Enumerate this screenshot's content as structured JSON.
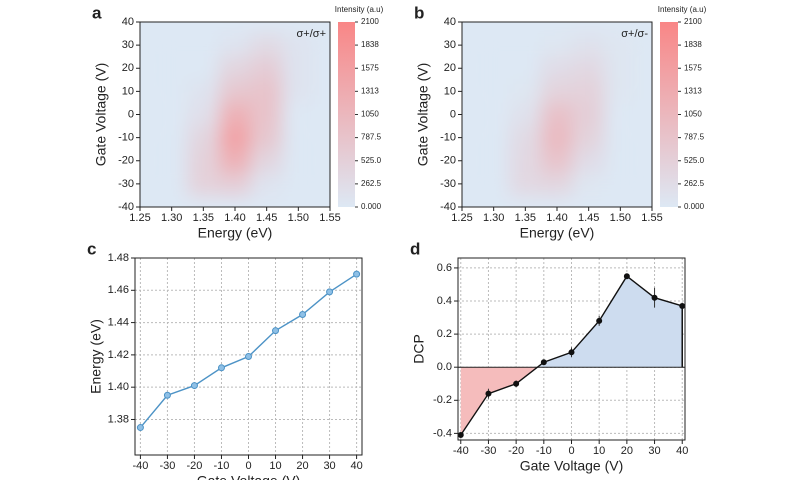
{
  "chart_data": [
    {
      "type": "heatmap",
      "panel": "a",
      "annotation": "σ+/σ+",
      "xlabel": "Energy (eV)",
      "ylabel": "Gate Voltage (V)",
      "colorbar_label": "Intensity (a.u)",
      "x": [
        1.3,
        1.35,
        1.4,
        1.45,
        1.5
      ],
      "y": [
        -30,
        -20,
        -10,
        0,
        10,
        20,
        30
      ],
      "z": [
        [
          0,
          500,
          600,
          100,
          0
        ],
        [
          0,
          500,
          1200,
          400,
          0
        ],
        [
          0,
          400,
          1500,
          700,
          0
        ],
        [
          0,
          200,
          1200,
          800,
          0
        ],
        [
          0,
          100,
          700,
          800,
          100
        ],
        [
          0,
          0,
          400,
          600,
          100
        ],
        [
          0,
          0,
          100,
          300,
          100
        ]
      ],
      "xlim": [
        1.25,
        1.55
      ],
      "ylim": [
        -40,
        40
      ],
      "zlim": [
        0,
        2100
      ],
      "xticks": [
        1.25,
        {
          "value": 1.3,
          "label": "1.30"
        },
        1.35,
        {
          "value": 1.4,
          "label": "1.40"
        },
        1.45,
        {
          "value": 1.5,
          "label": "1.50"
        },
        1.55
      ],
      "yticks": [
        -40,
        -30,
        -20,
        -10,
        0,
        10,
        20,
        30,
        40
      ],
      "zticks": [
        {
          "value": 0,
          "label": "0.000"
        },
        262.5,
        {
          "value": 525,
          "label": "525.0"
        },
        787.5,
        1050,
        1313,
        1575,
        1838,
        2100
      ],
      "colorscale": [
        "#dde8f4",
        "#f98686"
      ]
    },
    {
      "type": "heatmap",
      "panel": "b",
      "annotation": "σ+/σ-",
      "xlabel": "Energy (eV)",
      "ylabel": "Gate Voltage (V)",
      "colorbar_label": "Intensity (a.u)",
      "x": [
        1.3,
        1.35,
        1.4,
        1.45,
        1.5
      ],
      "y": [
        -30,
        -20,
        -10,
        0,
        10,
        20,
        30
      ],
      "z": [
        [
          0,
          350,
          400,
          50,
          0
        ],
        [
          0,
          350,
          800,
          250,
          0
        ],
        [
          0,
          300,
          1000,
          450,
          0
        ],
        [
          0,
          150,
          850,
          550,
          0
        ],
        [
          0,
          50,
          450,
          500,
          50
        ],
        [
          0,
          0,
          250,
          350,
          50
        ],
        [
          0,
          0,
          50,
          150,
          50
        ]
      ],
      "xlim": [
        1.25,
        1.55
      ],
      "ylim": [
        -40,
        40
      ],
      "zlim": [
        0,
        2100
      ],
      "xticks": [
        1.25,
        {
          "value": 1.3,
          "label": "1.30"
        },
        1.35,
        {
          "value": 1.4,
          "label": "1.40"
        },
        1.45,
        {
          "value": 1.5,
          "label": "1.50"
        },
        1.55
      ],
      "yticks": [
        -40,
        -30,
        -20,
        -10,
        0,
        10,
        20,
        30,
        40
      ],
      "zticks": [
        {
          "value": 0,
          "label": "0.000"
        },
        262.5,
        {
          "value": 525,
          "label": "525.0"
        },
        787.5,
        1050,
        1313,
        1575,
        1838,
        2100
      ],
      "colorscale": [
        "#dde8f4",
        "#f98686"
      ]
    },
    {
      "type": "line",
      "panel": "c",
      "xlabel": "Gate Voltage (V)",
      "ylabel": "Energy (eV)",
      "x": [
        -40,
        -30,
        -20,
        -10,
        0,
        10,
        20,
        30,
        40
      ],
      "values": [
        1.375,
        1.395,
        1.401,
        1.412,
        1.419,
        1.435,
        1.445,
        1.459,
        1.47
      ],
      "color": "#4d93c6",
      "grid": true,
      "xlim": [
        -42,
        42
      ],
      "ylim": [
        1.358,
        1.48
      ],
      "xticks": [
        -40,
        -30,
        -20,
        -10,
        0,
        10,
        20,
        30,
        40
      ],
      "yticks": [
        1.38,
        {
          "value": 1.4,
          "label": "1.40"
        },
        1.42,
        1.44,
        1.46,
        1.48
      ]
    },
    {
      "type": "line",
      "panel": "d",
      "xlabel": "Gate Voltage (V)",
      "ylabel": "DCP",
      "x": [
        -40,
        -30,
        -20,
        -10,
        0,
        10,
        20,
        30,
        40
      ],
      "values": [
        -0.41,
        -0.16,
        -0.1,
        0.03,
        0.09,
        0.28,
        0.55,
        0.42,
        0.37
      ],
      "errors": [
        0.01,
        0.03,
        0.02,
        0.01,
        0.03,
        0.03,
        0.01,
        0.06,
        0.01
      ],
      "color": "#111111",
      "positive_fill": "#cddcef",
      "negative_fill": "#f5bcbc",
      "grid": true,
      "xlim": [
        -41,
        41
      ],
      "ylim": [
        -0.44,
        0.66
      ],
      "xticks": [
        -40,
        -30,
        -20,
        -10,
        0,
        10,
        20,
        30,
        40
      ],
      "yticks": [
        -0.4,
        -0.2,
        {
          "value": 0,
          "label": "0.0"
        },
        0.2,
        0.4,
        0.6
      ]
    }
  ]
}
